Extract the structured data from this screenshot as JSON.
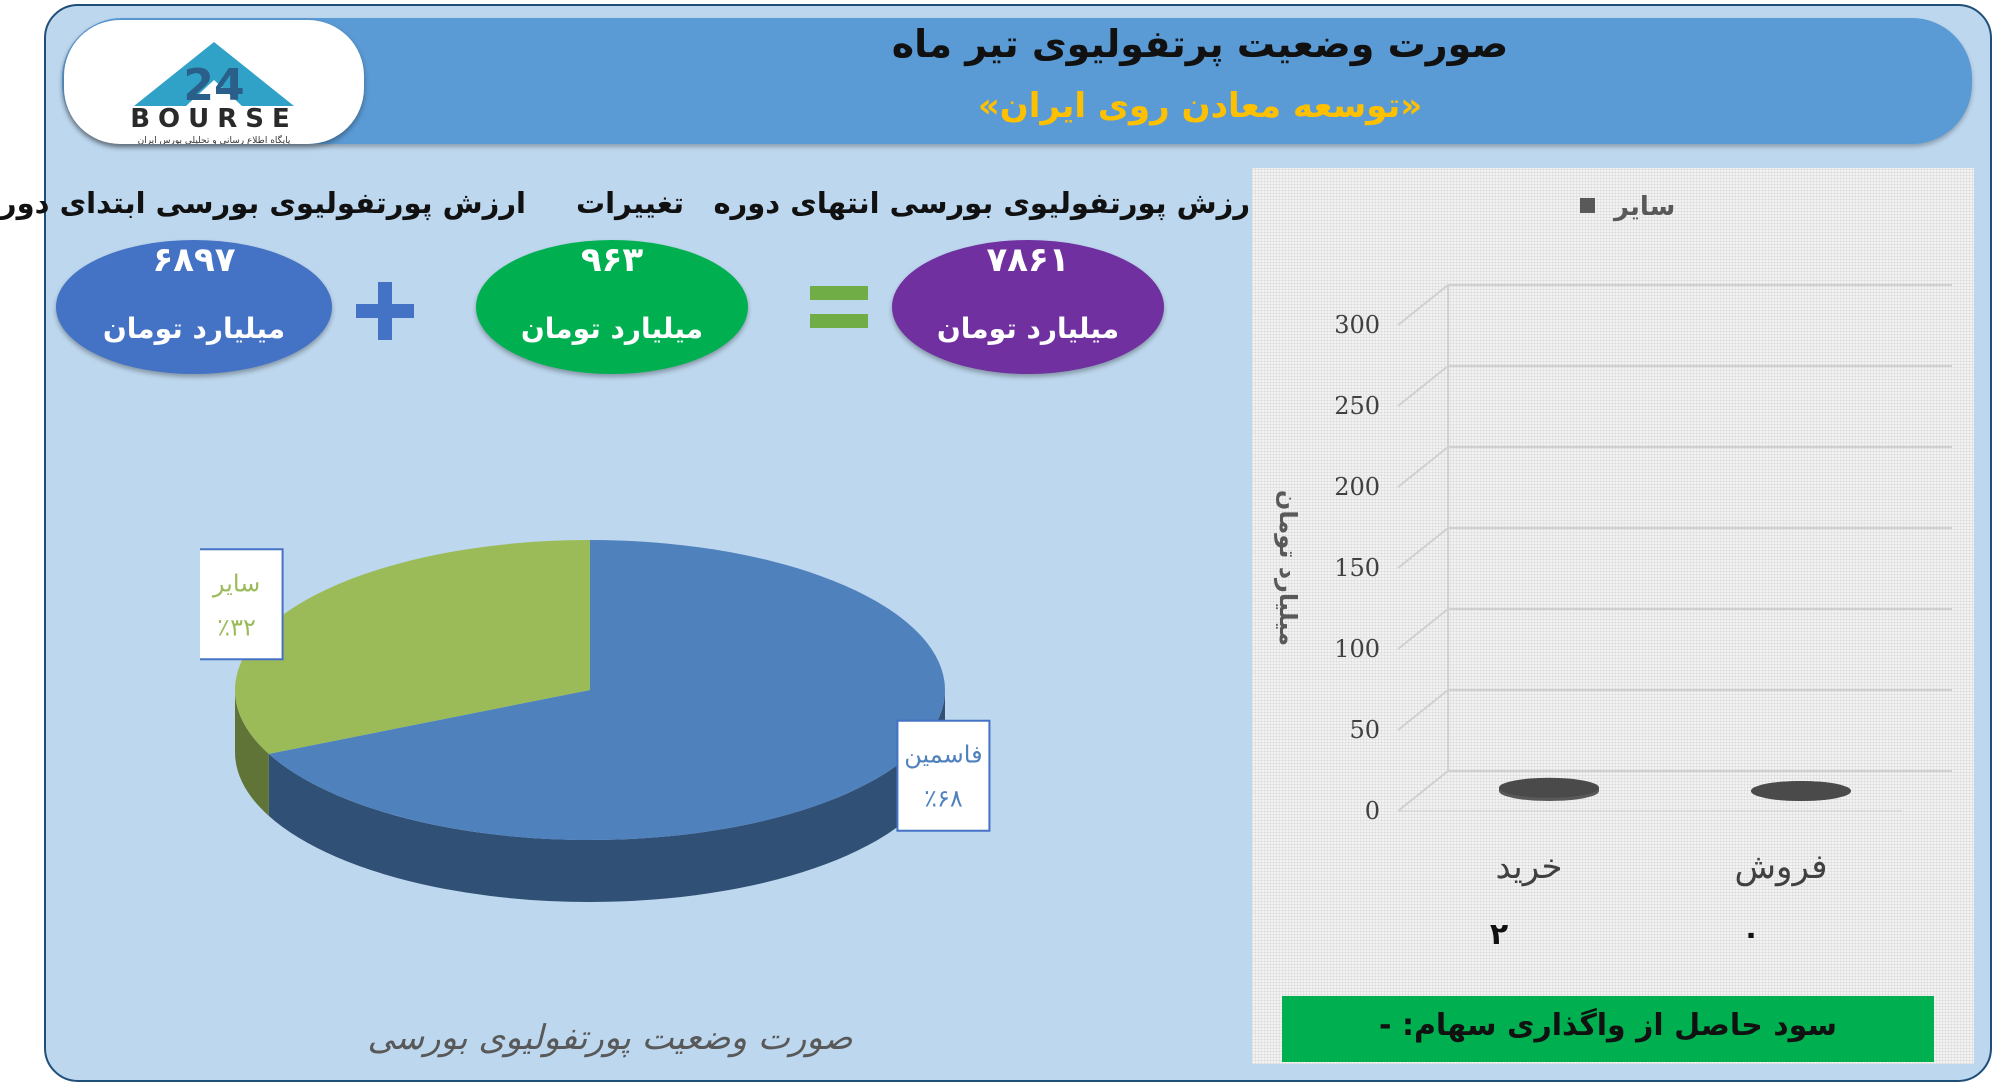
{
  "header": {
    "title": "صورت وضعیت پرتفولیوی تیر ماه",
    "subtitle": "«توسعه معادن روی ایران»",
    "logo_text": "BOURSE",
    "logo_tagline": "پایگاه اطلاع رسانی و تحلیلی بورس ایران",
    "logo_number": "24"
  },
  "summary": {
    "start": {
      "label": "ارزش پورتفولیوی بورسی ابتدای دوره",
      "value": "۶۸۹۷",
      "unit": "میلیارد تومان",
      "color": "#4472c4"
    },
    "change": {
      "label": "تغییرات",
      "value": "۹۶۳",
      "unit": "میلیارد تومان",
      "color": "#00b050"
    },
    "end": {
      "label": "ارزش پورتفولیوی بورسی انتهای دوره",
      "value": "۷۸۶۱",
      "unit": "میلیارد تومان",
      "color": "#7030a0"
    },
    "plus_color": "#4472c4",
    "equals_color": "#70ad47"
  },
  "chart_data": [
    {
      "type": "pie",
      "title": "صورت وضعیت پورتفولیوی بورسی",
      "slices": [
        {
          "name": "فاسمین",
          "value": 68,
          "label": "٪۶۸",
          "color": "#4f81bd"
        },
        {
          "name": "سایر",
          "value": 32,
          "label": "٪۳۲",
          "color": "#9bbb59"
        }
      ]
    },
    {
      "type": "bar",
      "legend": "سایر",
      "legend_color": "#595959",
      "ylabel": "میلیارد تومان",
      "ylim": [
        0,
        300
      ],
      "yticks": [
        0,
        50,
        100,
        150,
        200,
        250,
        300
      ],
      "categories": [
        "خرید",
        "فروش"
      ],
      "values": [
        2,
        0
      ],
      "value_labels": [
        "۲",
        "۰"
      ],
      "grid": true
    }
  ],
  "profit": {
    "text": "سود حاصل از واگذاری سهام: -",
    "color": "#00b050"
  }
}
